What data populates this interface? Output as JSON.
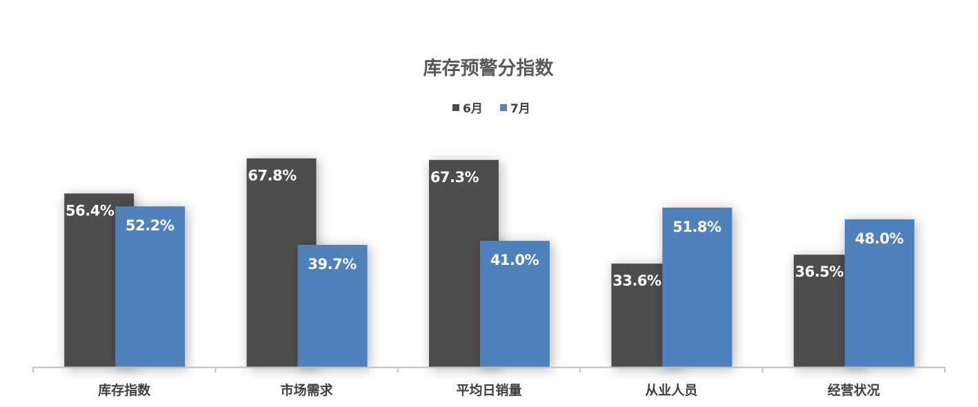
{
  "chart_data": {
    "type": "bar",
    "title": "库存预警分指数",
    "categories": [
      "库存指数",
      "市场需求",
      "平均日销量",
      "从业人员",
      "经营状况"
    ],
    "series": [
      {
        "name": "6月",
        "values": [
          56.4,
          67.8,
          67.3,
          33.6,
          36.5
        ],
        "labels": [
          "56.4%",
          "67.8%",
          "67.3%",
          "33.6%",
          "36.5%"
        ],
        "color": "#4d4d4d"
      },
      {
        "name": "7月",
        "values": [
          52.2,
          39.7,
          41.0,
          51.8,
          48.0
        ],
        "labels": [
          "52.2%",
          "39.7%",
          "41.0%",
          "51.8%",
          "48.0%"
        ],
        "color": "#4f81bd"
      }
    ],
    "ylim": [
      0,
      100
    ],
    "unit": "%",
    "grid": false,
    "legend_position": "top-center",
    "xlabel": "",
    "ylabel": ""
  }
}
